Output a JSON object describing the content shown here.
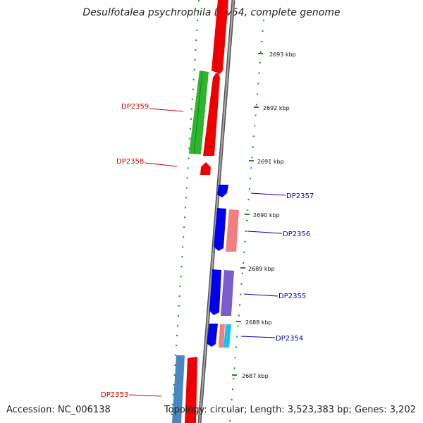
{
  "title": "Desulfotalea psychrophila LSv54, complete genome",
  "footer": {
    "accession": "Accession: NC_006138",
    "summary": "Topology: circular; Length: 3,523,383 bp; Genes: 3,202"
  },
  "scale_labels": [
    "2693 kbp",
    "2692 kbp",
    "2691 kbp",
    "2690 kbp",
    "2689 kbp",
    "2688 kbp",
    "2687 kbp"
  ],
  "gene_labels": [
    {
      "text": "DP2359",
      "color": "#cc0000"
    },
    {
      "text": "DP2358",
      "color": "#cc0000"
    },
    {
      "text": "DP2357",
      "color": "#0000bb"
    },
    {
      "text": "DP2356",
      "color": "#0000bb"
    },
    {
      "text": "DP2355",
      "color": "#0000bb"
    },
    {
      "text": "DP2354",
      "color": "#0000bb"
    },
    {
      "text": "DP2353",
      "color": "#cc0000"
    }
  ],
  "colors": {
    "forward_cds": "#ee0000",
    "reverse_cds": "#0000ee",
    "rrna_like": "#f08080",
    "trna_like": "#7a5ccc",
    "misc": "#19c2ee",
    "gc_skew": "#22aa22",
    "steel": "#4a86c0",
    "backbone": "#888888",
    "ticks": "#1a8a1a"
  }
}
